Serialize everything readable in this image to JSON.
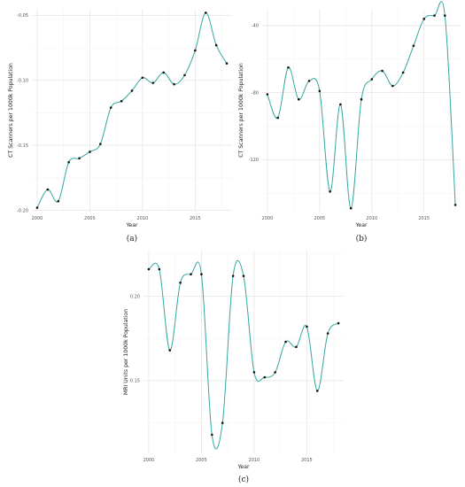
{
  "chart_data": [
    {
      "id": "a",
      "type": "line",
      "panel_label": "(a)",
      "xlabel": "Year",
      "ylabel": "CT Scanners per 1000k Population",
      "xlim": [
        1999.5,
        2018.5
      ],
      "ylim": [
        -0.201,
        -0.045
      ],
      "xticks": [
        2000,
        2005,
        2010,
        2015
      ],
      "yticks": [
        -0.2,
        -0.15,
        -0.1,
        -0.05
      ],
      "ytick_labels": [
        "-0.20",
        "-0.15",
        "-0.10",
        "-0.05"
      ],
      "grid": true,
      "series": [
        {
          "x": [
            2000,
            2001,
            2002,
            2003,
            2004,
            2005,
            2006,
            2007,
            2008,
            2009,
            2010,
            2011,
            2012,
            2013,
            2014,
            2015,
            2016,
            2017,
            2018
          ],
          "values": [
            -0.198,
            -0.184,
            -0.193,
            -0.163,
            -0.16,
            -0.155,
            -0.149,
            -0.121,
            -0.116,
            -0.108,
            -0.098,
            -0.102,
            -0.094,
            -0.103,
            -0.096,
            -0.077,
            -0.048,
            -0.073,
            -0.087
          ]
        }
      ]
    },
    {
      "id": "b",
      "type": "line",
      "panel_label": "(b)",
      "xlabel": "Year",
      "ylabel": "CT Scanners per 1000k Population",
      "xlim": [
        1999.5,
        2018.5
      ],
      "ylim": [
        -151,
        -30
      ],
      "xticks": [
        2000,
        2005,
        2010,
        2015
      ],
      "yticks": [
        -120,
        -80,
        -40
      ],
      "ytick_labels": [
        "-120",
        "-80",
        "-40"
      ],
      "grid": true,
      "series": [
        {
          "x": [
            2000,
            2001,
            2002,
            2003,
            2004,
            2005,
            2006,
            2007,
            2008,
            2009,
            2010,
            2011,
            2012,
            2013,
            2014,
            2015,
            2016,
            2017,
            2018
          ],
          "values": [
            -81,
            -95,
            -65,
            -84,
            -73,
            -79,
            -139,
            -87,
            -149,
            -84,
            -72,
            -67,
            -76,
            -68,
            -52,
            -36,
            -34,
            -34,
            -147
          ]
        }
      ]
    },
    {
      "id": "c",
      "type": "line",
      "panel_label": "(c)",
      "xlabel": "Year",
      "ylabel": "MRI Units per 1000k Population",
      "xlim": [
        1999.5,
        2018.5
      ],
      "ylim": [
        0.107,
        0.227
      ],
      "xticks": [
        2000,
        2005,
        2010,
        2015
      ],
      "yticks": [
        0.15,
        0.2
      ],
      "ytick_labels": [
        "0.15",
        "0.20"
      ],
      "grid": true,
      "series": [
        {
          "x": [
            2000,
            2001,
            2002,
            2003,
            2004,
            2005,
            2006,
            2007,
            2008,
            2009,
            2010,
            2011,
            2012,
            2013,
            2014,
            2015,
            2016,
            2017,
            2018
          ],
          "values": [
            0.216,
            0.216,
            0.168,
            0.208,
            0.213,
            0.213,
            0.118,
            0.125,
            0.212,
            0.212,
            0.155,
            0.152,
            0.155,
            0.173,
            0.17,
            0.182,
            0.144,
            0.178,
            0.184
          ]
        }
      ]
    }
  ]
}
